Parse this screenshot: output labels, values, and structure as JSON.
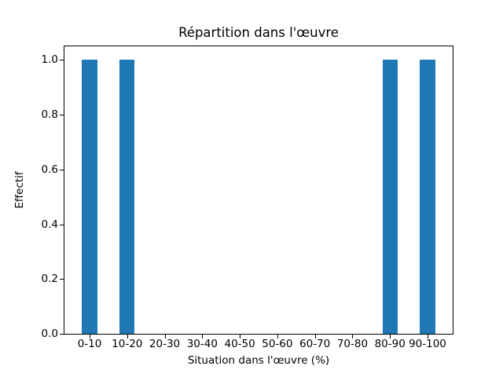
{
  "chart_data": {
    "type": "bar",
    "title": "Répartition dans l'œuvre",
    "xlabel": "Situation dans l'œuvre (%)",
    "ylabel": "Effectif",
    "categories": [
      "0-10",
      "10-20",
      "20-30",
      "30-40",
      "40-50",
      "50-60",
      "60-70",
      "70-80",
      "80-90",
      "90-100"
    ],
    "values": [
      1,
      1,
      0,
      0,
      0,
      0,
      0,
      0,
      1,
      1
    ],
    "ytick_values": [
      0.0,
      0.2,
      0.4,
      0.6,
      0.8,
      1.0
    ],
    "ytick_labels": [
      "0.0",
      "0.2",
      "0.4",
      "0.6",
      "0.8",
      "1.0"
    ],
    "ylim": [
      0,
      1.05
    ],
    "xlim": [
      -0.67,
      9.67
    ],
    "bar_width": 0.4,
    "bar_color": "#1f77b4",
    "grid": false,
    "legend": null,
    "background_color": "#ffffff"
  }
}
